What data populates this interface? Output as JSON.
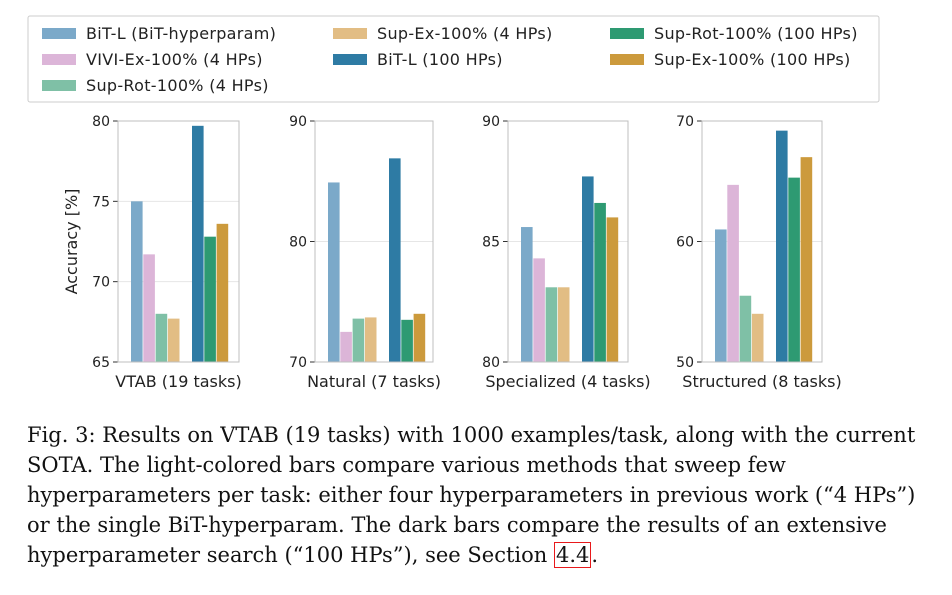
{
  "legend": [
    {
      "key": "bit_hyper",
      "label": "BiT-L (BiT-hyperparam)",
      "color": "#7ba9c9"
    },
    {
      "key": "vivi",
      "label": "VIVI-Ex-100% (4 HPs)",
      "color": "#dcb5d8"
    },
    {
      "key": "suprot4",
      "label": "Sup-Rot-100% (4 HPs)",
      "color": "#7fc0a6"
    },
    {
      "key": "supex4",
      "label": "Sup-Ex-100% (4 HPs)",
      "color": "#e2bd84"
    },
    {
      "key": "bit100",
      "label": "BiT-L (100 HPs)",
      "color": "#2e7ba4"
    },
    {
      "key": "suprot100",
      "label": "Sup-Rot-100% (100 HPs)",
      "color": "#2e9a72"
    },
    {
      "key": "supex100",
      "label": "Sup-Ex-100% (100 HPs)",
      "color": "#cc9a3c"
    }
  ],
  "chart_data": [
    {
      "type": "bar",
      "title": "",
      "xlabel": "VTAB (19 tasks)",
      "ylabel": "Accuracy [%]",
      "ylim": [
        65,
        80
      ],
      "yticks": [
        65,
        70,
        75,
        80
      ],
      "categories": [
        "BiT-L (BiT-hyperparam)",
        "VIVI-Ex-100% (4 HPs)",
        "Sup-Rot-100% (4 HPs)",
        "Sup-Ex-100% (4 HPs)",
        "BiT-L (100 HPs)",
        "Sup-Rot-100% (100 HPs)",
        "Sup-Ex-100% (100 HPs)"
      ],
      "values": [
        75.0,
        71.7,
        68.0,
        67.7,
        79.7,
        72.8,
        73.6
      ]
    },
    {
      "type": "bar",
      "title": "",
      "xlabel": "Natural (7 tasks)",
      "ylabel": "",
      "ylim": [
        70,
        90
      ],
      "yticks": [
        70,
        80,
        90
      ],
      "categories": [
        "BiT-L (BiT-hyperparam)",
        "VIVI-Ex-100% (4 HPs)",
        "Sup-Rot-100% (4 HPs)",
        "Sup-Ex-100% (4 HPs)",
        "BiT-L (100 HPs)",
        "Sup-Rot-100% (100 HPs)",
        "Sup-Ex-100% (100 HPs)"
      ],
      "values": [
        84.9,
        72.5,
        73.6,
        73.7,
        86.9,
        73.5,
        74.0
      ]
    },
    {
      "type": "bar",
      "title": "",
      "xlabel": "Specialized (4 tasks)",
      "ylabel": "",
      "ylim": [
        80,
        90
      ],
      "yticks": [
        80,
        85,
        90
      ],
      "categories": [
        "BiT-L (BiT-hyperparam)",
        "VIVI-Ex-100% (4 HPs)",
        "Sup-Rot-100% (4 HPs)",
        "Sup-Ex-100% (4 HPs)",
        "BiT-L (100 HPs)",
        "Sup-Rot-100% (100 HPs)",
        "Sup-Ex-100% (100 HPs)"
      ],
      "values": [
        85.6,
        84.3,
        83.1,
        83.1,
        87.7,
        86.6,
        86.0
      ]
    },
    {
      "type": "bar",
      "title": "",
      "xlabel": "Structured (8 tasks)",
      "ylabel": "",
      "ylim": [
        50,
        70
      ],
      "yticks": [
        50,
        60,
        70
      ],
      "categories": [
        "BiT-L (BiT-hyperparam)",
        "VIVI-Ex-100% (4 HPs)",
        "Sup-Rot-100% (4 HPs)",
        "Sup-Ex-100% (4 HPs)",
        "BiT-L (100 HPs)",
        "Sup-Rot-100% (100 HPs)",
        "Sup-Ex-100% (100 HPs)"
      ],
      "values": [
        61.0,
        64.7,
        55.5,
        54.0,
        69.2,
        65.3,
        67.0
      ]
    }
  ],
  "caption": {
    "label": "Fig. 3:",
    "text": " Results on VTAB (19 tasks) with 1000 examples/task, along with the current SOTA. The light-colored bars compare various methods that sweep few hyperparameters per task: either four hyperparameters in previous work (“4 HPs”) or the single BiT-hyperparam. The dark bars compare the results of an extensive hyperparameter search (“100 HPs”), see Section ",
    "ref": "4.4",
    "end": "."
  }
}
